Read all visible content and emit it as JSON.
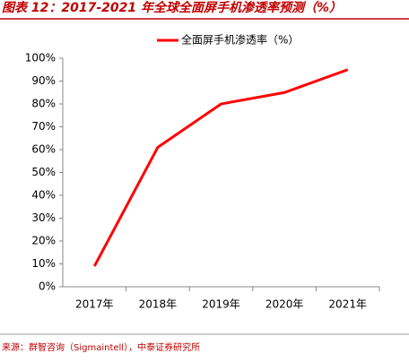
{
  "chart_data": {
    "type": "line",
    "title": "图表 12：2017-2021 年全球全面屏手机渗透率预测（%）",
    "source": "来源：群智咨询（Sigmaintell），中泰证券研究所",
    "categories": [
      "2017年",
      "2018年",
      "2019年",
      "2020年",
      "2021年"
    ],
    "series": [
      {
        "name": "全面屏手机渗透率（%）",
        "color": "#ff0000",
        "values": [
          9,
          61,
          80,
          85,
          95
        ]
      }
    ],
    "ylim": [
      0,
      100
    ],
    "yticks": [
      {
        "value": 0,
        "label": "0%"
      },
      {
        "value": 10,
        "label": "10%"
      },
      {
        "value": 20,
        "label": "20%"
      },
      {
        "value": 30,
        "label": "30%"
      },
      {
        "value": 40,
        "label": "40%"
      },
      {
        "value": 50,
        "label": "50%"
      },
      {
        "value": 60,
        "label": "60%"
      },
      {
        "value": 70,
        "label": "70%"
      },
      {
        "value": 80,
        "label": "80%"
      },
      {
        "value": 90,
        "label": "90%"
      },
      {
        "value": 100,
        "label": "100%"
      }
    ],
    "grid": false,
    "legend": "top"
  }
}
